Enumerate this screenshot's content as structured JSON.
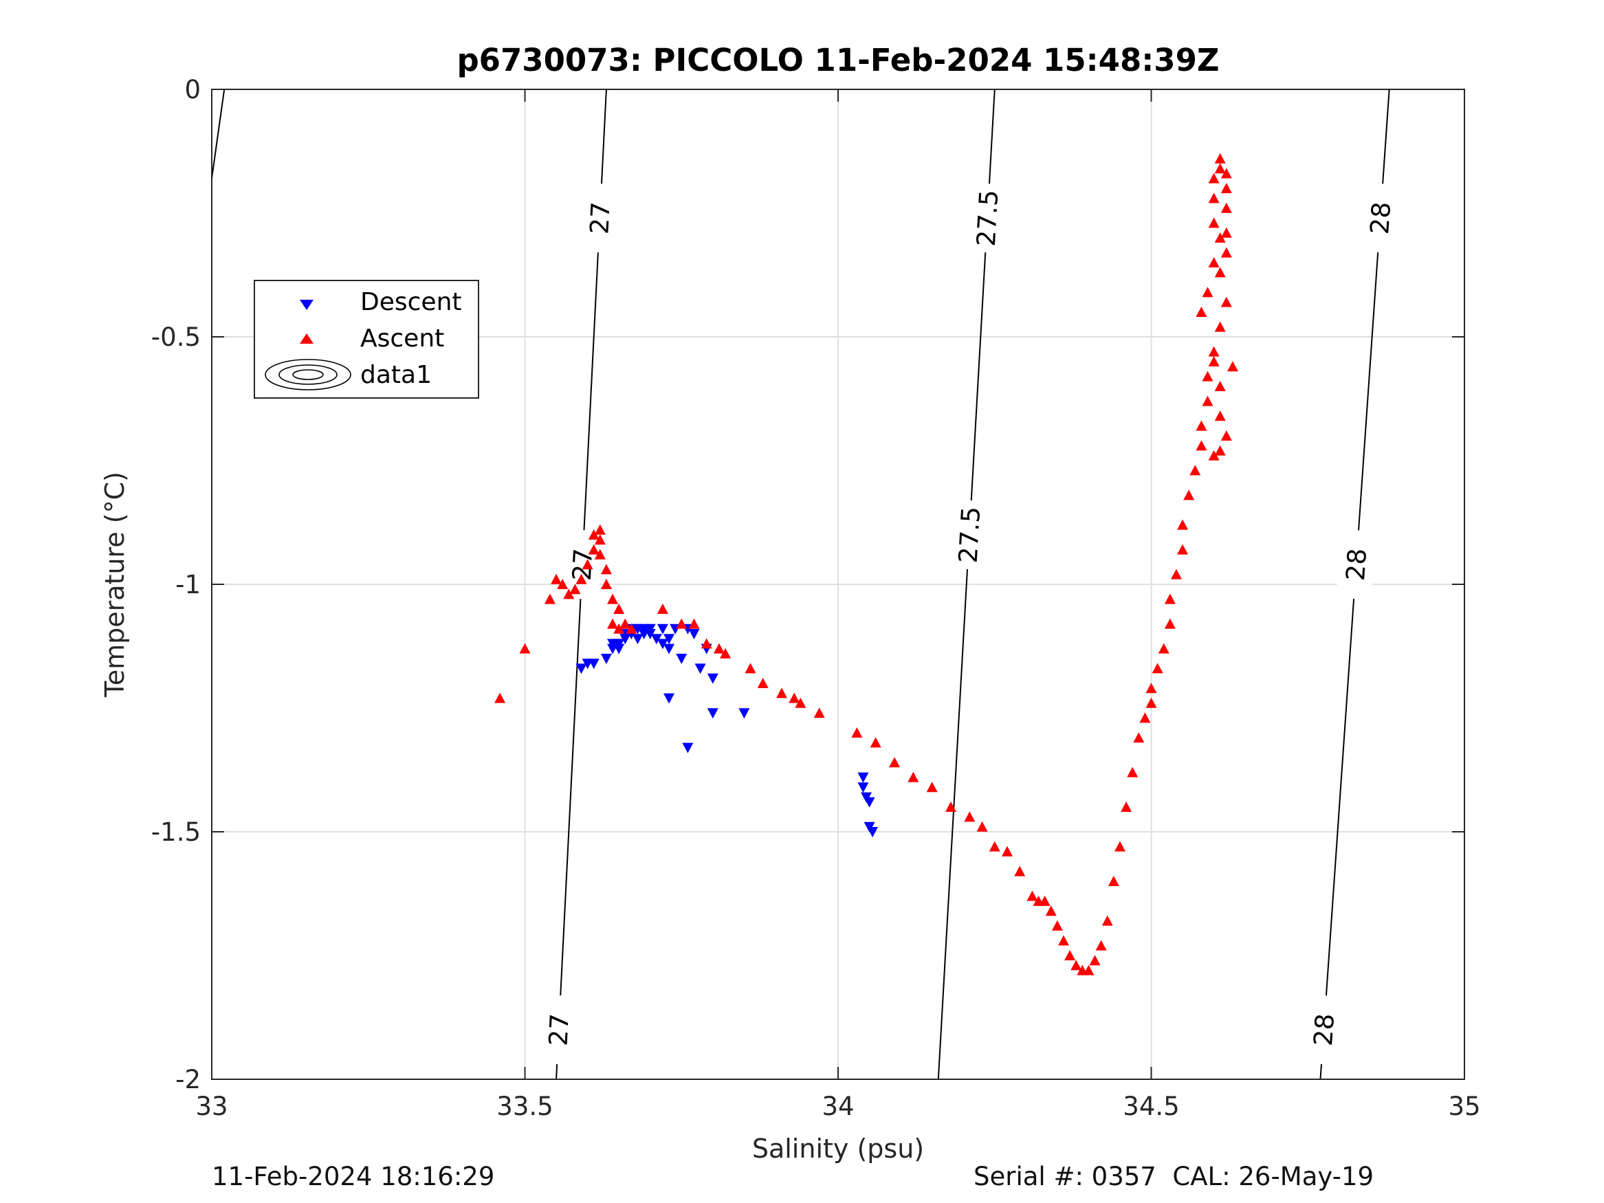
{
  "chart_data": {
    "type": "scatter",
    "title": "p6730073: PICCOLO 11-Feb-2024 15:48:39Z",
    "xlabel": "Salinity (psu)",
    "ylabel": "Temperature (°C)",
    "xlim": [
      33,
      35
    ],
    "ylim": [
      -2,
      0
    ],
    "xticks": [
      33,
      33.5,
      34,
      34.5,
      35
    ],
    "xtick_labels": [
      "33",
      "33.5",
      "34",
      "34.5",
      "35"
    ],
    "yticks": [
      0,
      -0.5,
      -1,
      -1.5,
      -2
    ],
    "ytick_labels": [
      "0",
      "-0.5",
      "-1",
      "-1.5",
      "-2"
    ],
    "grid": true,
    "legend_position": "upper-left",
    "legend": [
      "Descent",
      "Ascent",
      "data1"
    ],
    "series": [
      {
        "name": "Descent",
        "marker": "triangle-down",
        "color": "#0000ff",
        "points": [
          [
            33.59,
            -1.17
          ],
          [
            33.6,
            -1.16
          ],
          [
            33.61,
            -1.16
          ],
          [
            33.63,
            -1.15
          ],
          [
            33.64,
            -1.13
          ],
          [
            33.64,
            -1.12
          ],
          [
            33.65,
            -1.13
          ],
          [
            33.65,
            -1.12
          ],
          [
            33.66,
            -1.11
          ],
          [
            33.66,
            -1.1
          ],
          [
            33.67,
            -1.09
          ],
          [
            33.67,
            -1.1
          ],
          [
            33.68,
            -1.11
          ],
          [
            33.68,
            -1.09
          ],
          [
            33.69,
            -1.1
          ],
          [
            33.69,
            -1.09
          ],
          [
            33.7,
            -1.09
          ],
          [
            33.7,
            -1.1
          ],
          [
            33.71,
            -1.11
          ],
          [
            33.72,
            -1.09
          ],
          [
            33.72,
            -1.12
          ],
          [
            33.73,
            -1.13
          ],
          [
            33.73,
            -1.11
          ],
          [
            33.74,
            -1.09
          ],
          [
            33.75,
            -1.15
          ],
          [
            33.76,
            -1.09
          ],
          [
            33.77,
            -1.1
          ],
          [
            33.78,
            -1.17
          ],
          [
            33.79,
            -1.13
          ],
          [
            33.8,
            -1.19
          ],
          [
            33.8,
            -1.26
          ],
          [
            33.85,
            -1.26
          ],
          [
            33.73,
            -1.23
          ],
          [
            33.76,
            -1.33
          ],
          [
            34.04,
            -1.39
          ],
          [
            34.04,
            -1.41
          ],
          [
            34.045,
            -1.43
          ],
          [
            34.05,
            -1.44
          ],
          [
            34.05,
            -1.49
          ],
          [
            34.055,
            -1.5
          ]
        ]
      },
      {
        "name": "Ascent",
        "marker": "triangle-up",
        "color": "#ff0000",
        "points": [
          [
            33.46,
            -1.23
          ],
          [
            33.5,
            -1.13
          ],
          [
            33.54,
            -1.03
          ],
          [
            33.55,
            -0.99
          ],
          [
            33.56,
            -1.0
          ],
          [
            33.57,
            -1.02
          ],
          [
            33.58,
            -1.01
          ],
          [
            33.59,
            -0.99
          ],
          [
            33.6,
            -0.96
          ],
          [
            33.61,
            -0.93
          ],
          [
            33.61,
            -0.9
          ],
          [
            33.62,
            -0.89
          ],
          [
            33.62,
            -0.91
          ],
          [
            33.62,
            -0.94
          ],
          [
            33.63,
            -0.97
          ],
          [
            33.63,
            -1.0
          ],
          [
            33.64,
            -1.03
          ],
          [
            33.65,
            -1.05
          ],
          [
            33.64,
            -1.08
          ],
          [
            33.65,
            -1.09
          ],
          [
            33.66,
            -1.08
          ],
          [
            33.67,
            -1.09
          ],
          [
            33.72,
            -1.05
          ],
          [
            33.75,
            -1.08
          ],
          [
            33.77,
            -1.08
          ],
          [
            33.79,
            -1.12
          ],
          [
            33.81,
            -1.13
          ],
          [
            33.82,
            -1.14
          ],
          [
            33.86,
            -1.17
          ],
          [
            33.88,
            -1.2
          ],
          [
            33.91,
            -1.22
          ],
          [
            33.93,
            -1.23
          ],
          [
            33.94,
            -1.24
          ],
          [
            33.97,
            -1.26
          ],
          [
            34.03,
            -1.3
          ],
          [
            34.06,
            -1.32
          ],
          [
            34.09,
            -1.36
          ],
          [
            34.12,
            -1.39
          ],
          [
            34.15,
            -1.41
          ],
          [
            34.18,
            -1.45
          ],
          [
            34.21,
            -1.47
          ],
          [
            34.23,
            -1.49
          ],
          [
            34.25,
            -1.53
          ],
          [
            34.27,
            -1.54
          ],
          [
            34.29,
            -1.58
          ],
          [
            34.31,
            -1.63
          ],
          [
            34.32,
            -1.64
          ],
          [
            34.33,
            -1.64
          ],
          [
            34.34,
            -1.66
          ],
          [
            34.35,
            -1.69
          ],
          [
            34.36,
            -1.72
          ],
          [
            34.37,
            -1.75
          ],
          [
            34.38,
            -1.77
          ],
          [
            34.39,
            -1.78
          ],
          [
            34.4,
            -1.78
          ],
          [
            34.41,
            -1.76
          ],
          [
            34.42,
            -1.73
          ],
          [
            34.43,
            -1.68
          ],
          [
            34.44,
            -1.6
          ],
          [
            34.45,
            -1.53
          ],
          [
            34.46,
            -1.45
          ],
          [
            34.47,
            -1.38
          ],
          [
            34.48,
            -1.31
          ],
          [
            34.49,
            -1.27
          ],
          [
            34.5,
            -1.24
          ],
          [
            34.5,
            -1.21
          ],
          [
            34.51,
            -1.17
          ],
          [
            34.52,
            -1.13
          ],
          [
            34.53,
            -1.08
          ],
          [
            34.53,
            -1.03
          ],
          [
            34.54,
            -0.98
          ],
          [
            34.55,
            -0.93
          ],
          [
            34.55,
            -0.88
          ],
          [
            34.56,
            -0.82
          ],
          [
            34.57,
            -0.77
          ],
          [
            34.58,
            -0.72
          ],
          [
            34.58,
            -0.68
          ],
          [
            34.59,
            -0.63
          ],
          [
            34.59,
            -0.58
          ],
          [
            34.6,
            -0.55
          ],
          [
            34.6,
            -0.53
          ],
          [
            34.61,
            -0.6
          ],
          [
            34.61,
            -0.66
          ],
          [
            34.62,
            -0.7
          ],
          [
            34.61,
            -0.73
          ],
          [
            34.6,
            -0.74
          ],
          [
            34.63,
            -0.56
          ],
          [
            34.61,
            -0.48
          ],
          [
            34.62,
            -0.43
          ],
          [
            34.61,
            -0.37
          ],
          [
            34.62,
            -0.33
          ],
          [
            34.62,
            -0.29
          ],
          [
            34.62,
            -0.24
          ],
          [
            34.62,
            -0.2
          ],
          [
            34.61,
            -0.16
          ],
          [
            34.61,
            -0.14
          ],
          [
            34.6,
            -0.18
          ],
          [
            34.6,
            -0.22
          ],
          [
            34.6,
            -0.27
          ],
          [
            34.62,
            -0.17
          ],
          [
            34.61,
            -0.3
          ],
          [
            34.6,
            -0.35
          ],
          [
            34.59,
            -0.41
          ],
          [
            34.58,
            -0.45
          ]
        ]
      }
    ],
    "contours": [
      {
        "level": "27",
        "x0": 33.55,
        "x1": 33.63,
        "labels": [
          "27",
          "27",
          "27"
        ]
      },
      {
        "level": "27.5",
        "x0": 34.16,
        "x1": 34.25,
        "labels": [
          "27.5",
          "27.5"
        ]
      },
      {
        "level": "28",
        "x0": 34.77,
        "x1": 34.88,
        "labels": [
          "28",
          "28",
          "28"
        ]
      },
      {
        "level": "",
        "x0": 33.0,
        "x1": 33.02,
        "labels": []
      }
    ]
  },
  "footer": {
    "left": "11-Feb-2024 18:16:29",
    "right": "Serial #: 0357  CAL: 26-May-19"
  }
}
